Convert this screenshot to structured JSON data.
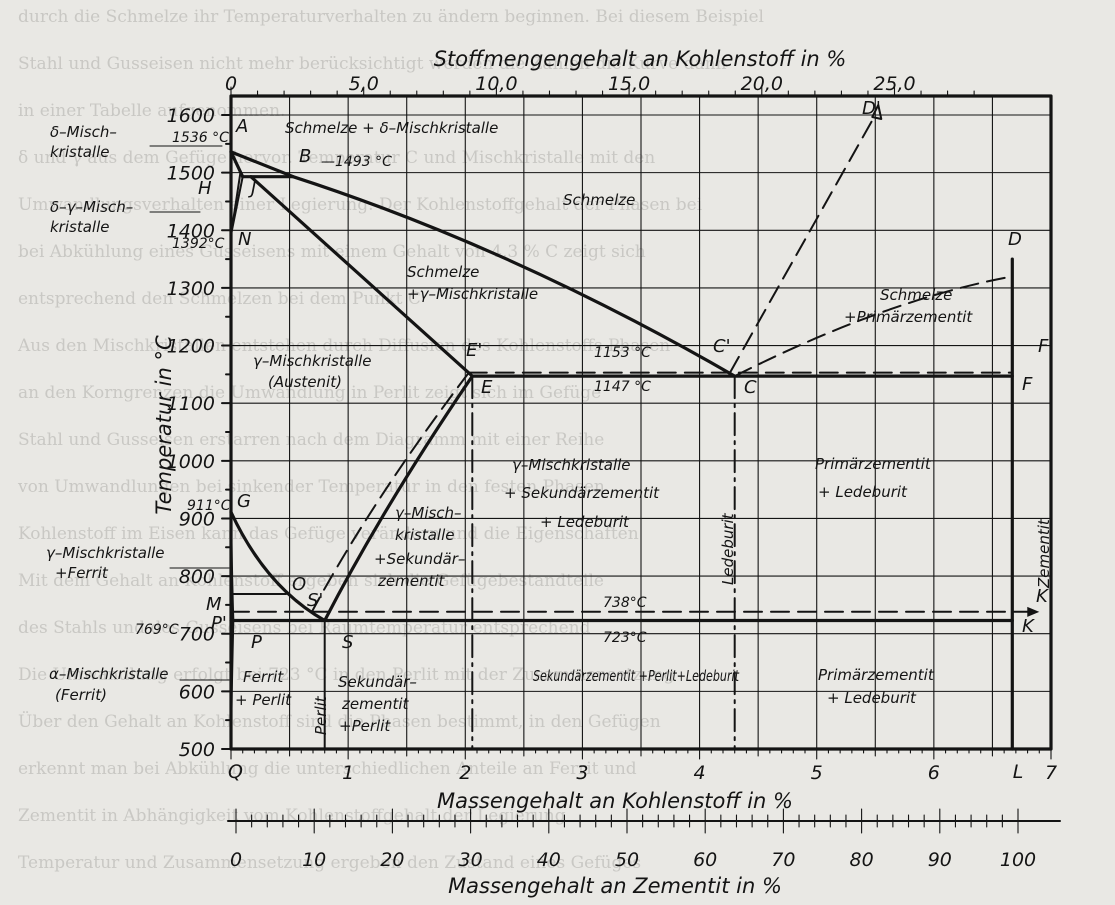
{
  "axes": {
    "top_title": "Stoffmengengehalt an Kohlenstoff in %",
    "top_ticks": [
      "0",
      "5,0",
      "10,0",
      "15,0",
      "20,0",
      "25,0"
    ],
    "bottom_title": "Massengehalt an Kohlenstoff in %",
    "bottom_ticks": [
      "0",
      "1",
      "2",
      "3",
      "4",
      "5",
      "6",
      "7"
    ],
    "bottom_end_label": "L",
    "left_title": "Temperatur in °C",
    "left_ticks": [
      "1600",
      "1500",
      "1400",
      "1300",
      "1200",
      "1100",
      "1000",
      "900",
      "800",
      "700",
      "600",
      "500"
    ],
    "cementite_title": "Massengehalt an Zementit in %",
    "cementite_ticks": [
      "0",
      "10",
      "20",
      "30",
      "40",
      "50",
      "60",
      "70",
      "80",
      "90",
      "100"
    ]
  },
  "points": {
    "A": "A",
    "B": "B",
    "H": "H",
    "J": "J",
    "N": "N",
    "G": "G",
    "O": "O",
    "M": "M",
    "P": "P",
    "P_prime": "P'",
    "S": "S",
    "S_prime": "S'",
    "E": "E",
    "E_prime": "E'",
    "C": "C",
    "C_prime": "C'",
    "D": "D",
    "D_prime": "D'",
    "F": "F",
    "F_prime": "F'",
    "K": "K",
    "K_prime": "K'",
    "Q": "Q"
  },
  "temperatures": {
    "t1536": "1536 °C",
    "t1493": "—1493 °C",
    "t1392": "1392°C",
    "t911": "911°C",
    "t769": "769°C",
    "t1153": "1153 °C",
    "t1147": "1147 °C",
    "t738": "738°C",
    "t723": "723°C"
  },
  "left_labels": {
    "delta_1": "δ–Misch–",
    "delta_2": "kristalle",
    "dg_1": "δ–γ–Misch–",
    "dg_2": "kristalle",
    "gf_1": "γ–Mischkristalle",
    "gf_2": "+Ferrit",
    "af_1": "α–Mischkristalle",
    "af_2": "(Ferrit)"
  },
  "regions": {
    "top_band": "Schmelze + δ–Mischkristalle",
    "schmelze": "Schmelze",
    "sg_1": "Schmelze",
    "sg_2": "+γ–Mischkristalle",
    "sp_1": "Schmelze",
    "sp_2": "+Primärzementit",
    "austenit_1": "γ–Mischkristalle",
    "austenit_2": "(Austenit)",
    "gsl_1": "γ–Mischkristalle",
    "gsl_2": "+ Sekundärzementit",
    "gsl_3": "+ Ledeburit",
    "pl_1": "Primärzementit",
    "pl_2": "+ Ledeburit",
    "gs_1": "γ–Misch–",
    "gs_2": "kristalle",
    "gs_3": "+Sekundär–",
    "gs_4": "zementit",
    "ledeburit": "Ledeburit",
    "zementit": "Zementit",
    "fp_1": "Ferrit",
    "fp_2": "+ Perlit",
    "perlit": "Perlit",
    "szp_1": "Sekundär–",
    "szp_2": "zementit",
    "szp_3": "+Perlit",
    "spl": "Sekundärzementit +Perlit+Ledeburit",
    "pzl_1": "Primärzementit",
    "pzl_2": "+ Ledeburit"
  },
  "background_text": [
    "durch die Schmelze ihr Temperaturverhalten zu ändern beginnen. Bei diesem Beispiel",
    "Stahl und Gusseisen nicht mehr berücksichtigt werden die Zahlen die Kurve dann",
    "in einer Tabelle aufgenommen.",
    "δ und γ aus dem Gefüge hervor. Temperatur C und Mischkristalle mit den",
    "Umwandlungsverhalten einer Legierung. Der Kohlenstoffgehalt der Phasen bei",
    "bei Abkühlung eines Gusseisens mit einem Gehalt von 4,3 % C zeigt sich",
    "entsprechend den Schmelzen bei dem Punkt C",
    "Aus den Mischkristallen entstehen durch Diffusion des Kohlenstoffs Phasen",
    "an den Korngrenzen die Umwandlung in Perlit zeigt sich im Gefüge",
    "Stahl und Gusseisen erstarren nach dem Diagramm mit einer Reihe",
    "von Umwandlungen bei sinkender Temperatur in den festen Phasen",
    "Kohlenstoff im Eisen kann das Gefüge verändern und die Eigenschaften",
    "Mit dem Gehalt an Kohlenstoff ergeben sich die Gefügebestandteile",
    "des Stahls und des Gusseisens bei Raumtemperatur entsprechend",
    "Die Umwandlung erfolgt bei 723 °C in den Perlit mit der Zusammensetzung",
    "Über den Gehalt an Kohlenstoff sind die Phasen bestimmt, in den Gefügen",
    "erkennt man bei Abkühlung die unterschiedlichen Anteile an Ferrit und",
    "Zementit in Abhängigkeit vom Kohlenstoffgehalt der Legierung",
    "Temperatur und Zusammensetzung ergeben den Zustand eines Gefüges"
  ]
}
